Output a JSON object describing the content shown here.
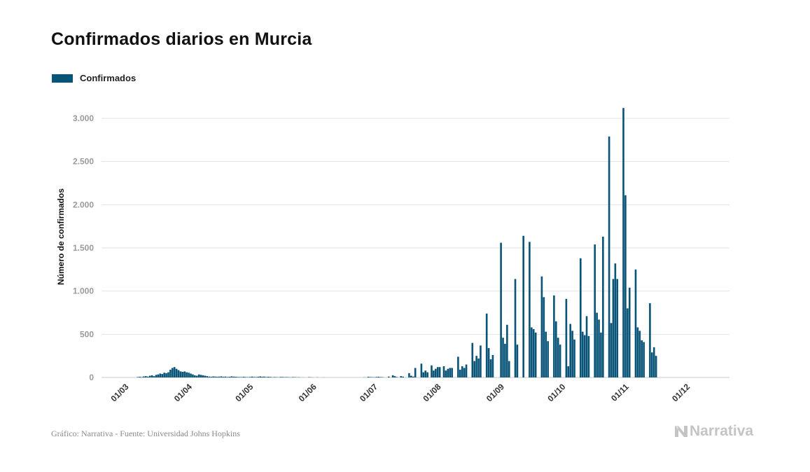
{
  "header": {
    "title": "Confirmados diarios en Murcia"
  },
  "colors": {
    "bar": "#0a5478",
    "grid": "#e3e3e3",
    "axis": "#c8c8c8"
  },
  "footer": {
    "source": "Gráfico: Narrativa - Fuente: Universidad Johns Hopkins",
    "brand": "Narrativa",
    "brand_icon": "narrativa-logo-icon"
  },
  "chart_data": {
    "type": "bar",
    "title": "Confirmados diarios en Murcia",
    "xlabel": "",
    "ylabel": "Número de confirmados",
    "ylim": [
      0,
      3300
    ],
    "y_ticks": [
      0,
      500,
      1000,
      1500,
      2000,
      2500,
      3000
    ],
    "y_tick_labels": [
      "0",
      "500",
      "1.000",
      "1.500",
      "2.000",
      "2.500",
      "3.000"
    ],
    "x_ticks": [
      "01/03",
      "01/04",
      "01/05",
      "01/06",
      "01/07",
      "01/08",
      "01/09",
      "01/10",
      "01/11",
      "01/12"
    ],
    "grid": true,
    "legend_position": "top-left",
    "series": [
      {
        "name": "Confirmados",
        "start_date": "2020-03-01",
        "values": [
          0,
          0,
          0,
          0,
          0,
          0,
          0,
          0,
          0,
          5,
          8,
          5,
          12,
          15,
          10,
          20,
          25,
          15,
          30,
          35,
          45,
          40,
          55,
          50,
          60,
          90,
          110,
          120,
          100,
          85,
          70,
          65,
          70,
          60,
          55,
          45,
          35,
          25,
          20,
          35,
          30,
          25,
          20,
          15,
          10,
          8,
          12,
          10,
          8,
          10,
          12,
          8,
          10,
          6,
          8,
          12,
          10,
          8,
          6,
          5,
          5,
          8,
          5,
          4,
          6,
          10,
          6,
          5,
          8,
          12,
          8,
          10,
          5,
          8,
          6,
          3,
          5,
          4,
          2,
          6,
          6,
          4,
          5,
          3,
          2,
          5,
          4,
          2,
          3,
          1,
          1,
          0,
          0,
          4,
          2,
          1,
          0,
          2,
          0,
          0,
          1,
          0,
          0,
          0,
          0,
          0,
          0,
          0,
          0,
          0,
          0,
          0,
          0,
          0,
          0,
          0,
          0,
          0,
          0,
          0,
          2,
          0,
          8,
          5,
          4,
          3,
          6,
          8,
          5,
          4,
          0,
          0,
          10,
          0,
          25,
          15,
          5,
          0,
          15,
          10,
          0,
          0,
          50,
          20,
          10,
          110,
          0,
          0,
          160,
          60,
          80,
          60,
          0,
          140,
          80,
          100,
          120,
          120,
          0,
          130,
          80,
          100,
          110,
          110,
          0,
          0,
          240,
          90,
          130,
          110,
          150,
          0,
          0,
          400,
          190,
          250,
          220,
          370,
          0,
          0,
          740,
          340,
          210,
          260,
          0,
          0,
          0,
          1560,
          460,
          390,
          610,
          190,
          0,
          0,
          1140,
          380,
          0,
          0,
          1640,
          0,
          0,
          1570,
          580,
          560,
          520,
          0,
          0,
          1170,
          930,
          530,
          420,
          0,
          0,
          950,
          650,
          460,
          380,
          0,
          0,
          910,
          130,
          620,
          540,
          440,
          0,
          0,
          1380,
          530,
          490,
          710,
          480,
          0,
          0,
          1540,
          750,
          670,
          520,
          1630,
          0,
          0,
          2790,
          630,
          1140,
          1320,
          1140,
          0,
          0,
          3120,
          2110,
          800,
          1040,
          0,
          0,
          1250,
          580,
          540,
          430,
          410,
          0,
          0,
          860,
          290,
          350,
          250
        ]
      }
    ]
  }
}
